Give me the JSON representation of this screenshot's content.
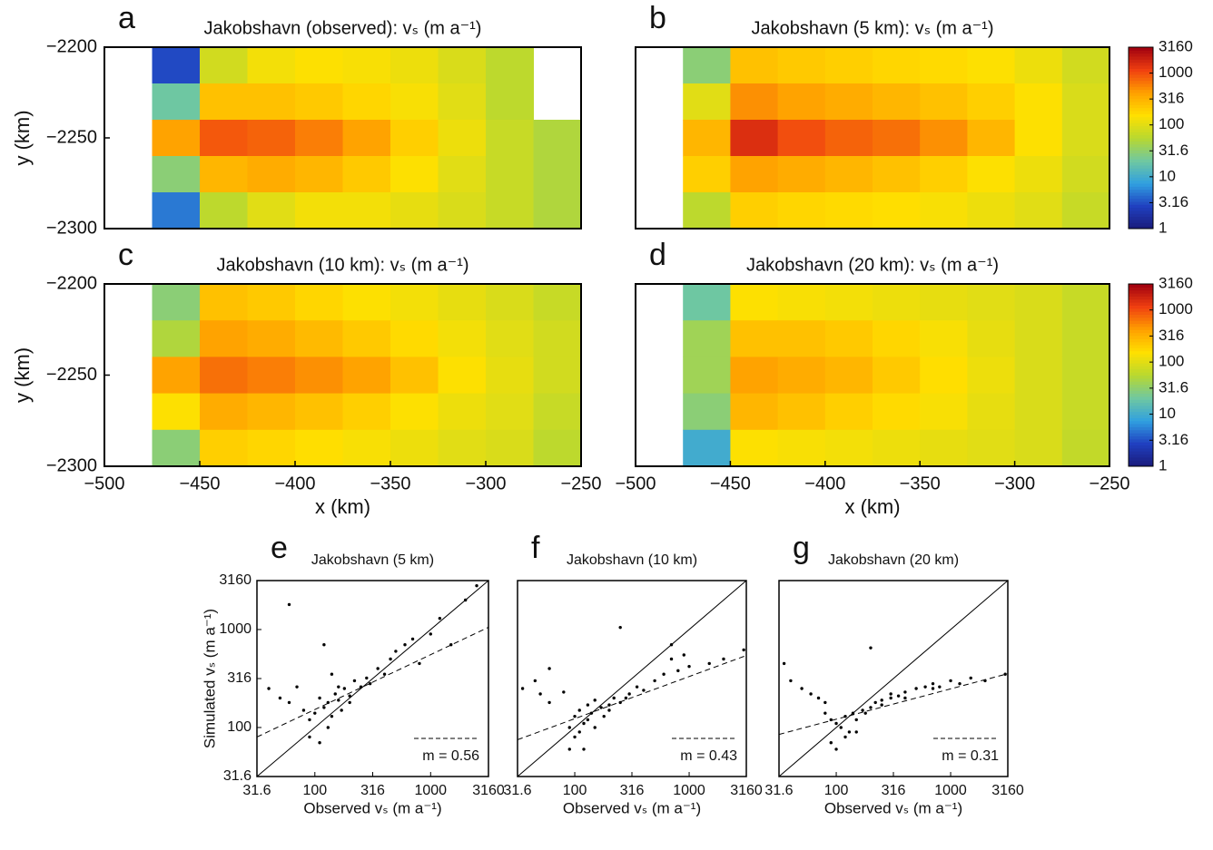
{
  "chart_data": [
    {
      "type": "heatmap",
      "panel": "a",
      "title": "Jakobshavn (observed): vₛ (m a⁻¹)",
      "ylabel": "y (km)",
      "xlim": [
        -500,
        -250
      ],
      "ylim": [
        -2300,
        -2200
      ],
      "yticks": [
        {
          "value": -2200,
          "label": "−2200"
        },
        {
          "value": -2250,
          "label": "−2250"
        },
        {
          "value": -2300,
          "label": "−2300"
        }
      ],
      "x": [
        -487.5,
        -462.5,
        -437.5,
        -412.5,
        -387.5,
        -362.5,
        -337.5,
        -312.5,
        -287.5,
        -262.5
      ],
      "y": [
        -2210,
        -2230,
        -2250,
        -2270,
        -2290
      ],
      "values": [
        [
          null,
          3,
          80,
          130,
          150,
          140,
          120,
          90,
          60,
          null
        ],
        [
          null,
          20,
          250,
          250,
          220,
          180,
          140,
          100,
          60,
          null
        ],
        [
          null,
          400,
          900,
          800,
          600,
          400,
          200,
          120,
          70,
          50
        ],
        [
          null,
          30,
          300,
          350,
          300,
          220,
          150,
          100,
          70,
          50
        ],
        [
          null,
          5,
          60,
          100,
          130,
          130,
          110,
          90,
          70,
          50
        ]
      ],
      "colorlim": [
        1,
        3160
      ],
      "log": true,
      "colorscale": [
        "#1a1a7a",
        "#2040c0",
        "#30a0e0",
        "#70c8a0",
        "#b8d830",
        "#ffe000",
        "#ffa000",
        "#f04010",
        "#a00010"
      ]
    },
    {
      "type": "heatmap",
      "panel": "b",
      "title": "Jakobshavn (5 km): vₛ (m a⁻¹)",
      "xlim": [
        -500,
        -250
      ],
      "ylim": [
        -2300,
        -2200
      ],
      "x": [
        -487.5,
        -462.5,
        -437.5,
        -412.5,
        -387.5,
        -362.5,
        -337.5,
        -312.5,
        -287.5,
        -262.5
      ],
      "y": [
        -2210,
        -2230,
        -2250,
        -2270,
        -2290
      ],
      "values": [
        [
          null,
          30,
          250,
          220,
          200,
          180,
          170,
          150,
          120,
          80
        ],
        [
          null,
          100,
          500,
          400,
          350,
          300,
          250,
          200,
          150,
          90
        ],
        [
          null,
          300,
          1500,
          1000,
          800,
          700,
          500,
          300,
          150,
          90
        ],
        [
          null,
          200,
          400,
          350,
          300,
          250,
          200,
          150,
          120,
          80
        ],
        [
          null,
          60,
          200,
          180,
          170,
          160,
          140,
          120,
          100,
          70
        ]
      ],
      "colorlim": [
        1,
        3160
      ],
      "log": true,
      "colorscale": [
        "#1a1a7a",
        "#2040c0",
        "#30a0e0",
        "#70c8a0",
        "#b8d830",
        "#ffe000",
        "#ffa000",
        "#f04010",
        "#a00010"
      ],
      "colorticks": [
        1,
        3.16,
        10,
        31.6,
        100,
        316,
        1000,
        3160
      ]
    },
    {
      "type": "heatmap",
      "panel": "c",
      "title": "Jakobshavn (10 km): vₛ (m a⁻¹)",
      "ylabel": "y (km)",
      "xlabel": "x (km)",
      "xlim": [
        -500,
        -250
      ],
      "ylim": [
        -2300,
        -2200
      ],
      "yticks": [
        {
          "value": -2200,
          "label": "−2200"
        },
        {
          "value": -2250,
          "label": "−2250"
        },
        {
          "value": -2300,
          "label": "−2300"
        }
      ],
      "xticks": [
        {
          "value": -500,
          "label": "−500"
        },
        {
          "value": -450,
          "label": "−450"
        },
        {
          "value": -400,
          "label": "−400"
        },
        {
          "value": -350,
          "label": "−350"
        },
        {
          "value": -300,
          "label": "−300"
        },
        {
          "value": -250,
          "label": "−250"
        }
      ],
      "x": [
        -487.5,
        -462.5,
        -437.5,
        -412.5,
        -387.5,
        -362.5,
        -337.5,
        -312.5,
        -287.5,
        -262.5
      ],
      "y": [
        -2210,
        -2230,
        -2250,
        -2270,
        -2290
      ],
      "values": [
        [
          null,
          30,
          250,
          220,
          180,
          150,
          130,
          110,
          90,
          70
        ],
        [
          null,
          50,
          400,
          350,
          280,
          220,
          170,
          130,
          100,
          80
        ],
        [
          null,
          400,
          700,
          600,
          500,
          400,
          250,
          150,
          110,
          80
        ],
        [
          null,
          150,
          350,
          300,
          250,
          200,
          150,
          120,
          100,
          70
        ],
        [
          null,
          30,
          200,
          180,
          160,
          140,
          120,
          100,
          90,
          60
        ]
      ],
      "colorlim": [
        1,
        3160
      ],
      "log": true,
      "colorscale": [
        "#1a1a7a",
        "#2040c0",
        "#30a0e0",
        "#70c8a0",
        "#b8d830",
        "#ffe000",
        "#ffa000",
        "#f04010",
        "#a00010"
      ]
    },
    {
      "type": "heatmap",
      "panel": "d",
      "title": "Jakobshavn (20 km): vₛ (m a⁻¹)",
      "xlabel": "x (km)",
      "xlim": [
        -500,
        -250
      ],
      "ylim": [
        -2300,
        -2200
      ],
      "xticks": [
        {
          "value": -500,
          "label": "−500"
        },
        {
          "value": -450,
          "label": "−450"
        },
        {
          "value": -400,
          "label": "−400"
        },
        {
          "value": -350,
          "label": "−350"
        },
        {
          "value": -300,
          "label": "−300"
        },
        {
          "value": -250,
          "label": "−250"
        }
      ],
      "x": [
        -487.5,
        -462.5,
        -437.5,
        -412.5,
        -387.5,
        -362.5,
        -337.5,
        -312.5,
        -287.5,
        -262.5
      ],
      "y": [
        -2210,
        -2230,
        -2250,
        -2270,
        -2290
      ],
      "values": [
        [
          null,
          20,
          150,
          140,
          130,
          120,
          110,
          100,
          90,
          70
        ],
        [
          null,
          40,
          250,
          250,
          220,
          180,
          140,
          110,
          90,
          70
        ],
        [
          null,
          40,
          400,
          350,
          300,
          220,
          160,
          120,
          90,
          70
        ],
        [
          null,
          30,
          300,
          250,
          200,
          170,
          140,
          110,
          90,
          70
        ],
        [
          null,
          10,
          150,
          140,
          130,
          120,
          110,
          100,
          90,
          65
        ]
      ],
      "colorlim": [
        1,
        3160
      ],
      "log": true,
      "colorscale": [
        "#1a1a7a",
        "#2040c0",
        "#30a0e0",
        "#70c8a0",
        "#b8d830",
        "#ffe000",
        "#ffa000",
        "#f04010",
        "#a00010"
      ],
      "colorticks": [
        1,
        3.16,
        10,
        31.6,
        100,
        316,
        1000,
        3160
      ]
    },
    {
      "type": "scatter",
      "panel": "e",
      "title": "Jakobshavn (5 km)",
      "ylabel": "Simulated vₛ (m a⁻¹)",
      "xlabel": "Observed vₛ (m a⁻¹)",
      "log": true,
      "xlim": [
        31.6,
        3160
      ],
      "ylim": [
        31.6,
        3160
      ],
      "color": "#000000",
      "xticks": [
        31.6,
        100,
        316,
        1000,
        3160
      ],
      "yticks": [
        31.6,
        100,
        316,
        1000,
        3160
      ],
      "x": [
        40,
        50,
        60,
        70,
        80,
        90,
        100,
        110,
        120,
        130,
        140,
        150,
        160,
        170,
        180,
        200,
        220,
        250,
        280,
        300,
        350,
        400,
        450,
        500,
        600,
        700,
        800,
        1000,
        1200,
        1500,
        2000,
        2500,
        60,
        120,
        90,
        110,
        130,
        200,
        160,
        140
      ],
      "values": [
        250,
        200,
        180,
        260,
        150,
        120,
        140,
        200,
        160,
        180,
        130,
        220,
        190,
        150,
        250,
        210,
        300,
        260,
        320,
        280,
        400,
        350,
        500,
        600,
        700,
        800,
        450,
        900,
        1300,
        700,
        2000,
        2800,
        1800,
        700,
        80,
        70,
        100,
        180,
        260,
        350
      ],
      "fit": {
        "slope": 0.56,
        "start": 80,
        "annotation": "m = 0.56"
      }
    },
    {
      "type": "scatter",
      "panel": "f",
      "title": "Jakobshavn (10 km)",
      "xlabel": "Observed vₛ (m a⁻¹)",
      "log": true,
      "xlim": [
        31.6,
        3160
      ],
      "ylim": [
        31.6,
        3160
      ],
      "color": "#000000",
      "xticks": [
        31.6,
        100,
        316,
        1000,
        3160
      ],
      "x": [
        35,
        50,
        60,
        80,
        90,
        100,
        110,
        120,
        130,
        140,
        150,
        170,
        200,
        220,
        250,
        300,
        350,
        400,
        500,
        600,
        700,
        800,
        1000,
        1500,
        2000,
        3000,
        250,
        100,
        90,
        120,
        150,
        180,
        200,
        60,
        45,
        280,
        700,
        900,
        110,
        130
      ],
      "values": [
        250,
        220,
        180,
        230,
        100,
        130,
        150,
        110,
        170,
        140,
        190,
        160,
        170,
        200,
        180,
        220,
        260,
        240,
        300,
        350,
        500,
        380,
        420,
        450,
        500,
        620,
        1050,
        80,
        60,
        60,
        100,
        130,
        150,
        400,
        300,
        200,
        700,
        550,
        90,
        120
      ],
      "fit": {
        "slope": 0.43,
        "start": 75,
        "annotation": "m = 0.43"
      }
    },
    {
      "type": "scatter",
      "panel": "g",
      "title": "Jakobshavn (20 km)",
      "xlabel": "Observed vₛ (m a⁻¹)",
      "log": true,
      "xlim": [
        31.6,
        3160
      ],
      "ylim": [
        31.6,
        3160
      ],
      "color": "#000000",
      "xticks": [
        31.6,
        100,
        316,
        1000,
        3160
      ],
      "x": [
        35,
        40,
        50,
        70,
        80,
        90,
        100,
        110,
        120,
        140,
        150,
        170,
        200,
        220,
        250,
        300,
        350,
        400,
        500,
        600,
        700,
        800,
        1000,
        1200,
        1500,
        2000,
        3000,
        200,
        90,
        100,
        120,
        150,
        60,
        80,
        250,
        400,
        300,
        700,
        130,
        180
      ],
      "values": [
        450,
        300,
        250,
        200,
        140,
        120,
        110,
        100,
        130,
        140,
        120,
        150,
        160,
        180,
        190,
        200,
        210,
        230,
        250,
        260,
        280,
        260,
        300,
        280,
        320,
        300,
        350,
        650,
        70,
        60,
        80,
        90,
        220,
        180,
        170,
        200,
        220,
        250,
        90,
        140
      ],
      "fit": {
        "slope": 0.31,
        "start": 85,
        "annotation": "m = 0.31"
      }
    }
  ]
}
